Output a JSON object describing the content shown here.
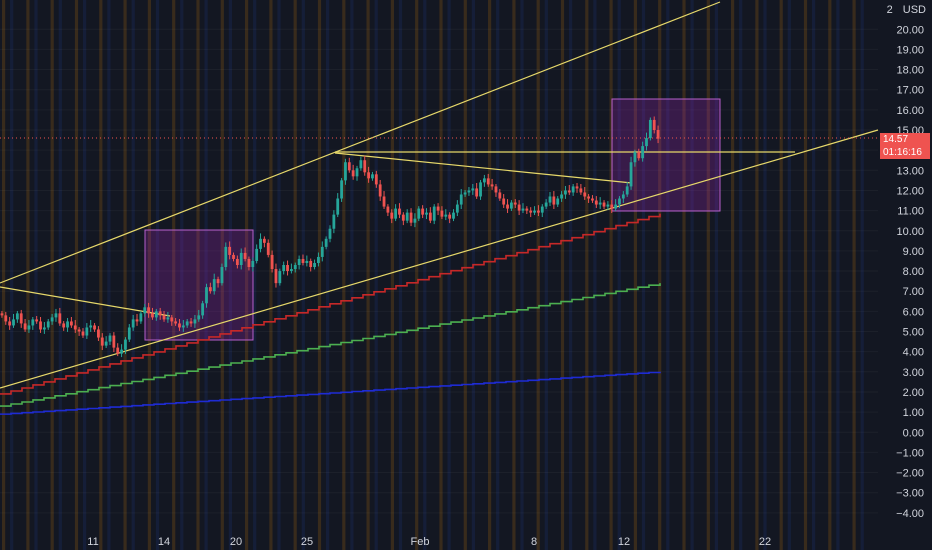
{
  "header": {
    "scale_label": "2",
    "currency_label": "USD"
  },
  "price_tags": {
    "last_price": "14.57",
    "countdown": "01:16:16"
  },
  "colors": {
    "background": "#131722",
    "up": "#26a69a",
    "down": "#ef5350",
    "trendline": "#e6d86a",
    "box_fill": "#9c27b0",
    "red_ma": "#c62828",
    "green_ma": "#4caf50",
    "blue_ma": "#1e2bd4"
  },
  "chart_data": {
    "type": "candlestick",
    "y_axis": {
      "ticks": [
        "20.00",
        "19.00",
        "18.00",
        "17.00",
        "16.00",
        "15.00",
        "14.00",
        "13.00",
        "12.00",
        "11.00",
        "10.00",
        "9.00",
        "8.00",
        "7.00",
        "6.00",
        "5.00",
        "4.00",
        "3.00",
        "2.00",
        "1.00",
        "0.00",
        "−1.00",
        "−2.00",
        "−3.00",
        "−4.00"
      ],
      "range": [
        -4.5,
        21.3
      ]
    },
    "x_axis": {
      "ticks": [
        "11",
        "14",
        "20",
        "25",
        "Feb",
        "8",
        "12",
        "22"
      ]
    },
    "last_price": 14.57,
    "closes": [
      5.8,
      5.5,
      5.3,
      5.6,
      5.9,
      5.4,
      5.1,
      5.3,
      5.6,
      5.5,
      5.1,
      5.2,
      5.5,
      5.7,
      5.9,
      5.4,
      5.2,
      5.5,
      5.3,
      5.1,
      5.0,
      4.8,
      5.2,
      5.3,
      5.1,
      4.7,
      4.3,
      4.5,
      4.8,
      4.2,
      3.9,
      4.1,
      4.6,
      5.2,
      5.6,
      5.5,
      5.9,
      6.2,
      5.9,
      5.7,
      6.0,
      5.8,
      5.6,
      5.7,
      5.5,
      5.4,
      5.2,
      5.3,
      5.5,
      5.4,
      5.6,
      5.8,
      6.4,
      7.2,
      7.0,
      7.6,
      7.4,
      8.2,
      9.2,
      8.8,
      8.6,
      8.3,
      8.9,
      8.6,
      8.2,
      8.5,
      9.1,
      9.6,
      9.4,
      8.8,
      8.1,
      7.4,
      8.0,
      8.3,
      8.0,
      8.1,
      8.3,
      8.6,
      8.4,
      8.5,
      8.2,
      8.4,
      8.7,
      9.2,
      9.6,
      10.1,
      10.8,
      11.6,
      12.5,
      13.4,
      13.0,
      12.7,
      13.1,
      13.5,
      12.9,
      12.6,
      12.8,
      12.3,
      11.7,
      11.2,
      10.9,
      10.6,
      11.1,
      10.8,
      10.5,
      10.9,
      10.4,
      10.6,
      11.1,
      10.8,
      10.9,
      10.5,
      11.2,
      11.0,
      10.7,
      10.8,
      10.6,
      10.9,
      11.3,
      11.8,
      11.9,
      12.0,
      12.1,
      11.7,
      12.4,
      12.6,
      12.3,
      12.2,
      11.9,
      11.6,
      11.3,
      11.1,
      11.4,
      11.3,
      11.0,
      11.1,
      11.0,
      10.9,
      11.0,
      10.9,
      11.2,
      11.4,
      11.7,
      11.3,
      11.6,
      11.8,
      12.0,
      11.9,
      12.2,
      12.1,
      11.9,
      11.7,
      11.6,
      11.5,
      11.3,
      11.4,
      11.2,
      11.3,
      11.1,
      11.3,
      11.6,
      11.8,
      12.2,
      13.4,
      13.9,
      13.6,
      14.2,
      14.6,
      15.5,
      15.0,
      14.57
    ]
  }
}
